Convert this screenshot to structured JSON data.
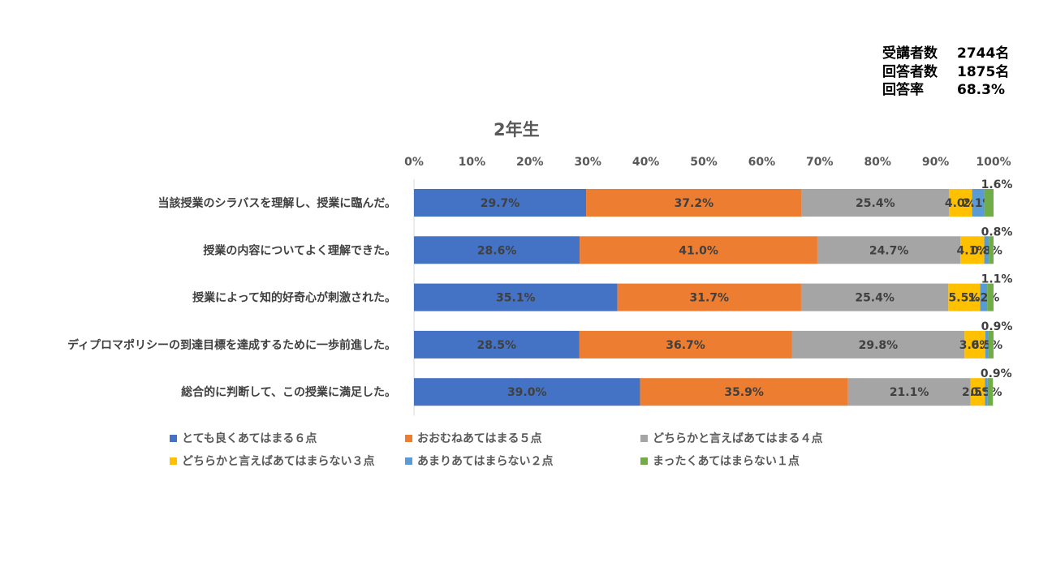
{
  "stats": [
    {
      "label": "受講者数",
      "value": "2744名"
    },
    {
      "label": "回答者数",
      "value": "1875名"
    },
    {
      "label": "回答率",
      "value": "68.3%"
    }
  ],
  "chart_data": {
    "type": "bar",
    "orientation": "horizontal",
    "stacked": true,
    "title": "2年生",
    "xlim": [
      0,
      100
    ],
    "x_ticks": [
      "0%",
      "10%",
      "20%",
      "30%",
      "40%",
      "50%",
      "60%",
      "70%",
      "80%",
      "90%",
      "100%"
    ],
    "x_axis_position": "top",
    "grid": false,
    "legend_position": "bottom",
    "categories": [
      "当該授業のシラバスを理解し、授業に臨んだ。",
      "授業の内容についてよく理解できた。",
      "授業によって知的好奇心が刺激された。",
      "ディプロマポリシーの到達目標を達成するために一歩前進した。",
      "総合的に判断して、この授業に満足した。"
    ],
    "series": [
      {
        "name": "とても良くあてはまる６点",
        "color": "#4472C4",
        "values": [
          29.7,
          28.6,
          35.1,
          28.5,
          39.0
        ],
        "labels": [
          "29.7%",
          "28.6%",
          "35.1%",
          "28.5%",
          "39.0%"
        ]
      },
      {
        "name": "おおむねあてはまる５点",
        "color": "#ED7D31",
        "values": [
          37.2,
          41.0,
          31.7,
          36.7,
          35.9
        ],
        "labels": [
          "37.2%",
          "41.0%",
          "31.7%",
          "36.7%",
          "35.9%"
        ]
      },
      {
        "name": "どちらかと言えばあてはまる４点",
        "color": "#A5A5A5",
        "values": [
          25.4,
          24.7,
          25.4,
          29.8,
          21.1
        ],
        "labels": [
          "25.4%",
          "24.7%",
          "25.4%",
          "29.8%",
          "21.1%"
        ]
      },
      {
        "name": "どちらかと言えばあてはまらない３点",
        "color": "#FFC000",
        "values": [
          4.0,
          4.1,
          5.5,
          3.6,
          2.5
        ],
        "labels": [
          "4.0%",
          "4.1%",
          "5.5%",
          "3.6%",
          "2.5%"
        ]
      },
      {
        "name": "あまりあてはまらない２点",
        "color": "#5B9BD5",
        "values": [
          2.1,
          0.8,
          1.2,
          0.5,
          0.5
        ],
        "labels": [
          "2.1%",
          "0.8%",
          "1.2%",
          "0.5%",
          "0.5%"
        ]
      },
      {
        "name": "まったくあてはまらない１点",
        "color": "#70AD47",
        "values": [
          1.6,
          0.8,
          1.1,
          0.9,
          0.9
        ],
        "labels": [
          "1.6%",
          "0.8%",
          "1.1%",
          "0.9%",
          "0.9%"
        ]
      }
    ]
  }
}
